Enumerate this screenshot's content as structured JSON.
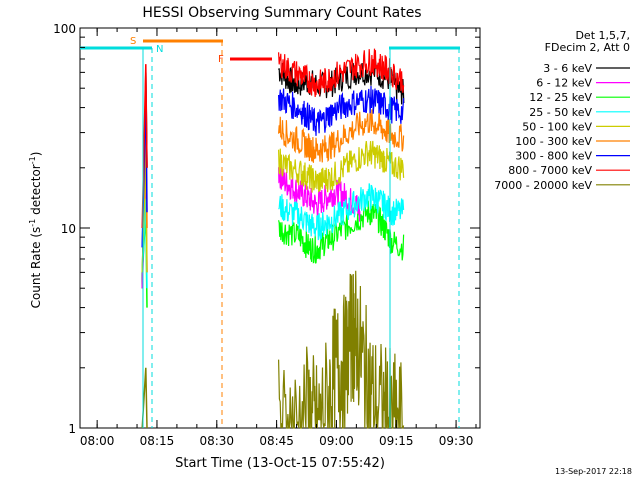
{
  "chart_data": {
    "type": "line",
    "title": "HESSI Observing Summary Count Rates",
    "xlabel": "Start Time (13-Oct-15 07:55:42)",
    "ylabel": "Count Rate (s⁻¹ detector⁻¹)",
    "ylabel_main": "Count Rate (s",
    "ylabel_mid": " detector",
    "ylabel_end": ")",
    "ylabel_sup": "-1",
    "y_scale": "log",
    "ylim": [
      1,
      100
    ],
    "xlim_minutes": [
      475.7,
      576.0
    ],
    "x_ticks": [
      {
        "label": "08:00",
        "min": 480
      },
      {
        "label": "08:15",
        "min": 495
      },
      {
        "label": "08:30",
        "min": 510
      },
      {
        "label": "08:45",
        "min": 525
      },
      {
        "label": "09:00",
        "min": 540
      },
      {
        "label": "09:15",
        "min": 555
      },
      {
        "label": "09:30",
        "min": 570
      }
    ],
    "y_ticks": [
      {
        "label": "1",
        "value": 1
      },
      {
        "label": "10",
        "value": 10
      },
      {
        "label": "100",
        "value": 100
      }
    ],
    "legend": {
      "position": "right",
      "header": [
        "Det 1,5,7,",
        "FDecim 2, Att 0"
      ]
    },
    "series": [
      {
        "name": "3 - 6 keV",
        "color": "#000000",
        "points": [
          [
            491.3,
            5
          ],
          [
            492.2,
            60
          ],
          [
            492.5,
            20
          ],
          [
            525.5,
            62
          ],
          [
            528,
            55
          ],
          [
            530,
            52
          ],
          [
            533,
            54
          ],
          [
            536,
            51
          ],
          [
            539,
            53
          ],
          [
            542,
            57
          ],
          [
            546,
            61
          ],
          [
            550,
            60
          ],
          [
            553,
            56
          ],
          [
            555,
            50
          ],
          [
            557,
            47
          ]
        ]
      },
      {
        "name": "6 - 12 keV",
        "color": "#ff00ff",
        "points": [
          [
            491.3,
            5
          ],
          [
            492.2,
            16
          ],
          [
            492.5,
            6
          ],
          [
            525.5,
            19
          ],
          [
            527,
            17
          ],
          [
            529,
            16
          ],
          [
            531,
            15
          ],
          [
            533,
            14
          ],
          [
            535,
            13
          ],
          [
            537,
            14
          ],
          [
            539,
            15
          ],
          [
            541,
            15
          ],
          [
            543,
            14
          ],
          [
            545,
            13
          ],
          [
            546,
            12
          ]
        ]
      },
      {
        "name": "12 - 25 keV",
        "color": "#00ff00",
        "points": [
          [
            491.3,
            6
          ],
          [
            492.2,
            12
          ],
          [
            492.5,
            4
          ],
          [
            525.5,
            10
          ],
          [
            528,
            9.5
          ],
          [
            531,
            9
          ],
          [
            533,
            8
          ],
          [
            535,
            7.8
          ],
          [
            537,
            8.5
          ],
          [
            539,
            9
          ],
          [
            542,
            10
          ],
          [
            545,
            11
          ],
          [
            548,
            12
          ],
          [
            550,
            11.5
          ],
          [
            552,
            10
          ],
          [
            554,
            8.5
          ],
          [
            557,
            8
          ]
        ]
      },
      {
        "name": "25 - 50 keV",
        "color": "#00ffff",
        "points": [
          [
            491.3,
            6
          ],
          [
            492.2,
            14
          ],
          [
            492.5,
            5
          ],
          [
            525.5,
            13
          ],
          [
            528,
            12
          ],
          [
            531,
            11.5
          ],
          [
            533,
            10.5
          ],
          [
            535,
            10
          ],
          [
            537,
            10.5
          ],
          [
            539,
            11
          ],
          [
            542,
            12
          ],
          [
            545,
            13.5
          ],
          [
            548,
            14.5
          ],
          [
            550,
            14
          ],
          [
            552,
            13
          ],
          [
            554,
            12
          ],
          [
            557,
            12
          ]
        ]
      },
      {
        "name": "50 - 100 keV",
        "color": "#cccc00",
        "points": [
          [
            491.3,
            6
          ],
          [
            492.2,
            24
          ],
          [
            492.5,
            6
          ],
          [
            525.5,
            22
          ],
          [
            528,
            20
          ],
          [
            531,
            19
          ],
          [
            533,
            18
          ],
          [
            535,
            17
          ],
          [
            537,
            17.5
          ],
          [
            539,
            18
          ],
          [
            542,
            20
          ],
          [
            545,
            22
          ],
          [
            548,
            24
          ],
          [
            550,
            23
          ],
          [
            552,
            22
          ],
          [
            554,
            20.5
          ],
          [
            557,
            20
          ]
        ]
      },
      {
        "name": "100 - 300 keV",
        "color": "#ff8000",
        "points": [
          [
            491.3,
            8
          ],
          [
            492.2,
            36
          ],
          [
            492.5,
            10
          ],
          [
            525.5,
            32
          ],
          [
            528,
            29
          ],
          [
            531,
            27
          ],
          [
            533,
            25.5
          ],
          [
            535,
            24.5
          ],
          [
            537,
            25
          ],
          [
            539,
            26
          ],
          [
            542,
            29
          ],
          [
            545,
            32
          ],
          [
            548,
            34
          ],
          [
            550,
            33
          ],
          [
            552,
            31
          ],
          [
            554,
            29
          ],
          [
            557,
            28
          ]
        ]
      },
      {
        "name": "300 - 800 keV",
        "color": "#0000ff",
        "points": [
          [
            491.3,
            8
          ],
          [
            492.2,
            48
          ],
          [
            492.5,
            12
          ],
          [
            525.5,
            45
          ],
          [
            528,
            42
          ],
          [
            531,
            39
          ],
          [
            533,
            36
          ],
          [
            535,
            33
          ],
          [
            537,
            35
          ],
          [
            539,
            38
          ],
          [
            542,
            41
          ],
          [
            545,
            43
          ],
          [
            548,
            44
          ],
          [
            550,
            43
          ],
          [
            552,
            41
          ],
          [
            554,
            39
          ],
          [
            557,
            38
          ]
        ]
      },
      {
        "name": "800 - 7000 keV",
        "color": "#ff0000",
        "points": [
          [
            491.3,
            10
          ],
          [
            492.2,
            66
          ],
          [
            492.5,
            20
          ],
          [
            525.5,
            68
          ],
          [
            528,
            62
          ],
          [
            531,
            58
          ],
          [
            533,
            55
          ],
          [
            535,
            52
          ],
          [
            537,
            54
          ],
          [
            539,
            57
          ],
          [
            542,
            61
          ],
          [
            545,
            65
          ],
          [
            548,
            68
          ],
          [
            550,
            67
          ],
          [
            552,
            63
          ],
          [
            554,
            59
          ],
          [
            557,
            55
          ]
        ]
      },
      {
        "name": "7000 - 20000 keV",
        "color": "#808000",
        "points": [
          [
            491.3,
            1
          ],
          [
            492.2,
            2
          ],
          [
            492.5,
            1
          ],
          [
            525.5,
            1
          ],
          [
            529,
            1
          ],
          [
            533,
            1.2
          ],
          [
            535,
            1
          ],
          [
            538,
            1.4
          ],
          [
            540,
            2
          ],
          [
            542,
            2.1
          ],
          [
            544,
            3
          ],
          [
            545,
            2.9
          ],
          [
            547,
            2
          ],
          [
            549,
            1.4
          ],
          [
            552,
            1.2
          ],
          [
            554,
            1.1
          ],
          [
            557,
            1
          ]
        ]
      }
    ],
    "annotations": {
      "s_label": "S",
      "n_label": "N",
      "f_label": "F"
    },
    "colors": {
      "saa_line": "#00dddd",
      "night_line": "#00dddd",
      "flare_marker": "#ff8000",
      "flare_peak": "#ff0000"
    }
  },
  "footer": {
    "date_stamp": "13-Sep-2017 22:18"
  }
}
